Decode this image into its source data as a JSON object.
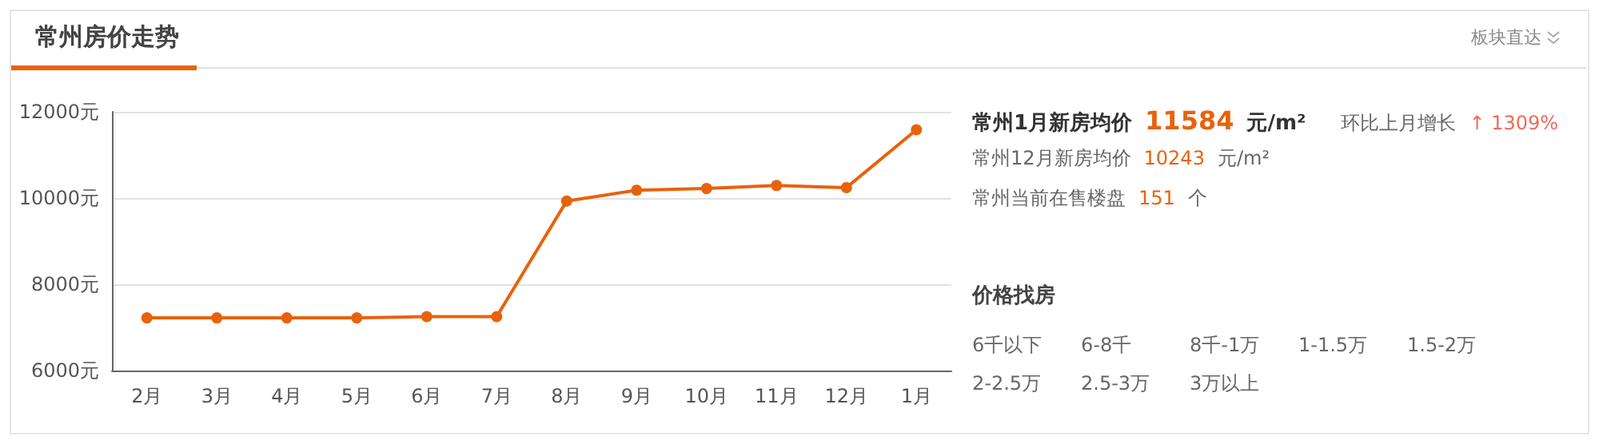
{
  "chart_data": [
    {
      "type": "line",
      "title": "常州房价走势",
      "categories": [
        "2月",
        "3月",
        "4月",
        "5月",
        "6月",
        "7月",
        "8月",
        "9月",
        "10月",
        "11月",
        "12月",
        "1月"
      ],
      "series": [
        {
          "color": "#e8620c",
          "values": [
            7220,
            7220,
            7220,
            7220,
            7250,
            7250,
            9930,
            10180,
            10220,
            10290,
            10243,
            11584
          ]
        }
      ],
      "ylim": [
        6000,
        12000
      ],
      "yticks": [
        {
          "value": 6000,
          "label": "6000元"
        },
        {
          "value": 8000,
          "label": "8000元"
        },
        {
          "value": 10000,
          "label": "10000元"
        },
        {
          "value": 12000,
          "label": "12000元"
        }
      ],
      "grid": "y",
      "marker": "circle",
      "line_style": "solid"
    },
    {
      "type": "other",
      "annotations": [
        "板块直达",
        "常州1月新房均价",
        "11584",
        "元/m²",
        "环比上月增长",
        "↑ 1309%",
        "常州12月新房均价",
        "10243",
        "元/m²",
        "常州当前在售楼盘",
        "151",
        "个",
        "价格找房",
        "6千以下",
        "6-8千",
        "8千-1万",
        "1-1.5万",
        "1.5-2万",
        "2-2.5万",
        "2.5-3万",
        "3万以上"
      ]
    }
  ]
}
